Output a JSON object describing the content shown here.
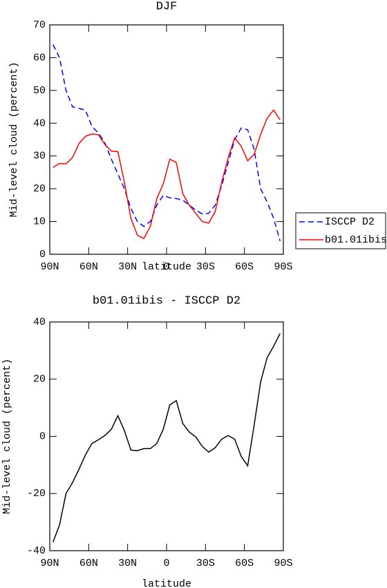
{
  "chart_data": [
    {
      "type": "line",
      "title": "DJF",
      "xlabel": "latitude",
      "ylabel": "Mid-level cloud (percent)",
      "x": [
        87.5,
        82.5,
        77.5,
        72.5,
        67.5,
        62.5,
        57.5,
        52.5,
        47.5,
        42.5,
        37.5,
        32.5,
        27.5,
        22.5,
        17.5,
        12.5,
        7.5,
        2.5,
        -2.5,
        -7.5,
        -12.5,
        -17.5,
        -22.5,
        -27.5,
        -32.5,
        -37.5,
        -42.5,
        -47.5,
        -52.5,
        -57.5,
        -62.5,
        -67.5,
        -72.5,
        -77.5,
        -82.5,
        -87.5
      ],
      "series": [
        {
          "name": "ISCCP D2",
          "color": "#0000ff",
          "linestyle": "dashed",
          "values": [
            64,
            60,
            50,
            45,
            44.5,
            44,
            39,
            37,
            34,
            29,
            24.5,
            20,
            14,
            10,
            8.5,
            10,
            15,
            18,
            17.2,
            17,
            16.5,
            15,
            13.5,
            12.3,
            12.5,
            15,
            21,
            28,
            35,
            38.5,
            38,
            32,
            20,
            16,
            11,
            4
          ]
        },
        {
          "name": "b01.01ibis",
          "color": "#ff0000",
          "linestyle": "solid",
          "values": [
            26.5,
            27.7,
            27.6,
            29.5,
            33.8,
            36,
            36.7,
            36.5,
            33.5,
            31.5,
            31.3,
            22,
            11,
            5.8,
            4.8,
            8.5,
            17,
            21.5,
            29,
            28,
            18.5,
            15,
            12.5,
            10,
            9.5,
            13,
            22,
            29.5,
            35.5,
            33,
            28.5,
            30.5,
            36.5,
            41.5,
            44,
            41
          ]
        }
      ],
      "xlim": [
        90,
        -90
      ],
      "xticks": [
        {
          "value": 90,
          "label": "90N"
        },
        {
          "value": 60,
          "label": "60N"
        },
        {
          "value": 30,
          "label": "30N"
        },
        0,
        {
          "value": -30,
          "label": "30S"
        },
        {
          "value": -60,
          "label": "60S"
        },
        {
          "value": -90,
          "label": "90S"
        }
      ],
      "ylim": [
        0,
        70
      ],
      "yticks": [
        0,
        10,
        20,
        30,
        40,
        50,
        60,
        70
      ],
      "legend": "right"
    },
    {
      "type": "line",
      "title": "b01.01ibis - ISCCP D2",
      "xlabel": "latitude",
      "ylabel": "Mid-level cloud (percent)",
      "x": [
        87.5,
        82.5,
        77.5,
        72.5,
        67.5,
        62.5,
        57.5,
        52.5,
        47.5,
        42.5,
        37.5,
        32.5,
        27.5,
        22.5,
        17.5,
        12.5,
        7.5,
        2.5,
        -2.5,
        -7.5,
        -12.5,
        -17.5,
        -22.5,
        -27.5,
        -32.5,
        -37.5,
        -42.5,
        -47.5,
        -52.5,
        -57.5,
        -62.5,
        -67.5,
        -72.5,
        -77.5,
        -82.5,
        -87.5
      ],
      "color": "#000000",
      "linestyle": "solid",
      "values": [
        -37,
        -31,
        -20,
        -16.2,
        -11.5,
        -6.5,
        -2.5,
        -1.2,
        0.3,
        2.5,
        7.2,
        2,
        -4.8,
        -5,
        -4.3,
        -4.3,
        -2.5,
        2.5,
        11,
        12.5,
        4.5,
        1.5,
        -0.2,
        -3.5,
        -5.5,
        -4,
        -1,
        0.3,
        -1,
        -7,
        -10.3,
        4,
        19,
        27.5,
        31.5,
        36
      ],
      "xlim": [
        90,
        -90
      ],
      "xticks": [
        {
          "value": 90,
          "label": "90N"
        },
        {
          "value": 60,
          "label": "60N"
        },
        {
          "value": 30,
          "label": "30N"
        },
        0,
        {
          "value": -30,
          "label": "30S"
        },
        {
          "value": -60,
          "label": "60S"
        },
        {
          "value": -90,
          "label": "90S"
        }
      ],
      "ylim": [
        -40,
        40
      ],
      "yticks": [
        -40,
        -20,
        0,
        20,
        40
      ]
    }
  ]
}
